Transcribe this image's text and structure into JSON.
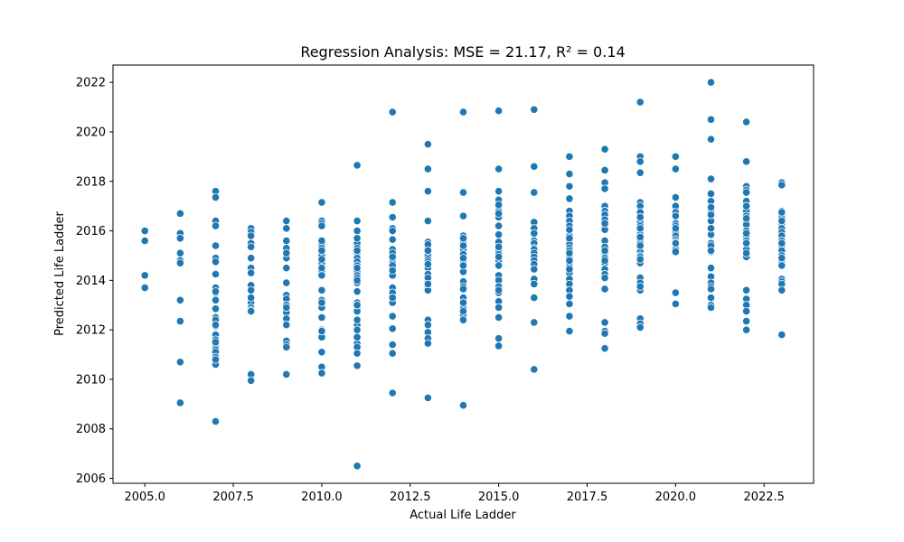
{
  "chart_data": {
    "type": "scatter",
    "title": "Regression Analysis: MSE = 21.17, R² = 0.14",
    "xlabel": "Actual Life Ladder",
    "ylabel": "Predicted Life Ladder",
    "xlim": [
      2004.1,
      2023.9
    ],
    "ylim": [
      2005.8,
      2022.7
    ],
    "xticks": [
      "2005.0",
      "2007.5",
      "2010.0",
      "2012.5",
      "2015.0",
      "2017.5",
      "2020.0",
      "2022.5"
    ],
    "yticks": [
      "2006",
      "2008",
      "2010",
      "2012",
      "2014",
      "2016",
      "2018",
      "2020",
      "2022"
    ],
    "grid": false,
    "legend": "none",
    "marker_color": "#1f77b4",
    "series": [
      {
        "x": [
          2005,
          2005,
          2005,
          2005,
          2005,
          2006,
          2006,
          2006,
          2006,
          2006,
          2006,
          2006,
          2006,
          2006,
          2006,
          2007,
          2007,
          2007,
          2007,
          2007,
          2007,
          2007,
          2007,
          2007,
          2007,
          2007,
          2007,
          2007,
          2007,
          2007,
          2007,
          2007,
          2007,
          2007,
          2007,
          2007,
          2007,
          2007,
          2007,
          2007,
          2007,
          2007,
          2007,
          2008,
          2008,
          2008,
          2008,
          2008,
          2008,
          2008,
          2008,
          2008,
          2008,
          2008,
          2008,
          2008,
          2008,
          2008,
          2008,
          2008,
          2008,
          2009,
          2009,
          2009,
          2009,
          2009,
          2009,
          2009,
          2009,
          2009,
          2009,
          2009,
          2009,
          2009,
          2009,
          2009,
          2009,
          2009,
          2009,
          2009,
          2009,
          2010,
          2010,
          2010,
          2010,
          2010,
          2010,
          2010,
          2010,
          2010,
          2010,
          2010,
          2010,
          2010,
          2010,
          2010,
          2010,
          2010,
          2010,
          2010,
          2010,
          2010,
          2010,
          2010,
          2010,
          2010,
          2010,
          2010,
          2010,
          2011,
          2011,
          2011,
          2011,
          2011,
          2011,
          2011,
          2011,
          2011,
          2011,
          2011,
          2011,
          2011,
          2011,
          2011,
          2011,
          2011,
          2011,
          2011,
          2011,
          2011,
          2011,
          2011,
          2011,
          2011,
          2011,
          2011,
          2011,
          2011,
          2011,
          2011,
          2011,
          2011,
          2012,
          2012,
          2012,
          2012,
          2012,
          2012,
          2012,
          2012,
          2012,
          2012,
          2012,
          2012,
          2012,
          2012,
          2012,
          2012,
          2012,
          2012,
          2012,
          2012,
          2012,
          2012,
          2012,
          2012,
          2012,
          2012,
          2013,
          2013,
          2013,
          2013,
          2013,
          2013,
          2013,
          2013,
          2013,
          2013,
          2013,
          2013,
          2013,
          2013,
          2013,
          2013,
          2013,
          2013,
          2013,
          2013,
          2013,
          2013,
          2013,
          2013,
          2013,
          2013,
          2013,
          2014,
          2014,
          2014,
          2014,
          2014,
          2014,
          2014,
          2014,
          2014,
          2014,
          2014,
          2014,
          2014,
          2014,
          2014,
          2014,
          2014,
          2014,
          2014,
          2014,
          2014,
          2014,
          2014,
          2014,
          2014,
          2014,
          2014,
          2015,
          2015,
          2015,
          2015,
          2015,
          2015,
          2015,
          2015,
          2015,
          2015,
          2015,
          2015,
          2015,
          2015,
          2015,
          2015,
          2015,
          2015,
          2015,
          2015,
          2015,
          2015,
          2015,
          2015,
          2015,
          2015,
          2015,
          2015,
          2015,
          2016,
          2016,
          2016,
          2016,
          2016,
          2016,
          2016,
          2016,
          2016,
          2016,
          2016,
          2016,
          2016,
          2016,
          2016,
          2016,
          2016,
          2016,
          2016,
          2016,
          2017,
          2017,
          2017,
          2017,
          2017,
          2017,
          2017,
          2017,
          2017,
          2017,
          2017,
          2017,
          2017,
          2017,
          2017,
          2017,
          2017,
          2017,
          2017,
          2017,
          2017,
          2017,
          2017,
          2017,
          2017,
          2017,
          2017,
          2017,
          2017,
          2017,
          2017,
          2018,
          2018,
          2018,
          2018,
          2018,
          2018,
          2018,
          2018,
          2018,
          2018,
          2018,
          2018,
          2018,
          2018,
          2018,
          2018,
          2018,
          2018,
          2018,
          2018,
          2018,
          2018,
          2018,
          2018,
          2018,
          2018,
          2019,
          2019,
          2019,
          2019,
          2019,
          2019,
          2019,
          2019,
          2019,
          2019,
          2019,
          2019,
          2019,
          2019,
          2019,
          2019,
          2019,
          2019,
          2019,
          2019,
          2019,
          2019,
          2019,
          2019,
          2019,
          2019,
          2019,
          2019,
          2019,
          2019,
          2019,
          2020,
          2020,
          2020,
          2020,
          2020,
          2020,
          2020,
          2020,
          2020,
          2020,
          2020,
          2020,
          2020,
          2020,
          2020,
          2020,
          2020,
          2020,
          2020,
          2020,
          2021,
          2021,
          2021,
          2021,
          2021,
          2021,
          2021,
          2021,
          2021,
          2021,
          2021,
          2021,
          2021,
          2021,
          2021,
          2021,
          2021,
          2021,
          2021,
          2021,
          2021,
          2021,
          2021,
          2021,
          2021,
          2021,
          2022,
          2022,
          2022,
          2022,
          2022,
          2022,
          2022,
          2022,
          2022,
          2022,
          2022,
          2022,
          2022,
          2022,
          2022,
          2022,
          2022,
          2022,
          2022,
          2022,
          2022,
          2022,
          2022,
          2022,
          2022,
          2022,
          2022,
          2022,
          2023,
          2023,
          2023,
          2023,
          2023,
          2023,
          2023,
          2023,
          2023,
          2023,
          2023,
          2023,
          2023,
          2023,
          2023,
          2023,
          2023,
          2023,
          2023,
          2023,
          2023,
          2023,
          2023,
          2023,
          2023
        ],
        "y": [
          2016.0,
          2015.6,
          2014.2,
          2013.7,
          2013.7,
          2016.7,
          2015.9,
          2015.7,
          2015.1,
          2014.8,
          2014.7,
          2013.2,
          2012.35,
          2010.7,
          2009.05,
          2017.6,
          2017.35,
          2016.4,
          2016.2,
          2015.4,
          2014.9,
          2014.75,
          2014.25,
          2013.7,
          2013.5,
          2013.2,
          2012.85,
          2012.5,
          2012.4,
          2012.15,
          2011.8,
          2011.6,
          2011.4,
          2011.3,
          2011.2,
          2011.1,
          2010.9,
          2010.6,
          2008.3,
          2013.55,
          2012.2,
          2011.5,
          2010.8,
          2016.1,
          2015.95,
          2015.8,
          2015.5,
          2015.35,
          2014.9,
          2014.5,
          2014.3,
          2013.8,
          2013.6,
          2013.25,
          2013.1,
          2012.9,
          2012.8,
          2012.75,
          2010.2,
          2009.95,
          2013.3,
          2016.4,
          2016.1,
          2015.6,
          2015.3,
          2015.0,
          2014.9,
          2014.5,
          2013.4,
          2013.25,
          2013.0,
          2012.7,
          2012.45,
          2012.2,
          2011.55,
          2011.4,
          2011.3,
          2010.2,
          2015.1,
          2013.9,
          2012.9,
          2017.15,
          2016.4,
          2016.3,
          2016.2,
          2015.45,
          2015.3,
          2015.1,
          2015.0,
          2014.8,
          2014.7,
          2014.35,
          2014.2,
          2013.6,
          2013.2,
          2013.0,
          2012.9,
          2012.5,
          2012.0,
          2011.7,
          2011.1,
          2010.5,
          2010.25,
          2015.2,
          2014.5,
          2013.1,
          2011.95,
          2015.6,
          2014.85,
          2018.65,
          2016.4,
          2016.0,
          2015.5,
          2015.3,
          2015.1,
          2014.9,
          2014.75,
          2014.6,
          2014.45,
          2014.35,
          2014.2,
          2013.9,
          2013.55,
          2013.1,
          2012.95,
          2012.85,
          2012.75,
          2012.2,
          2012.0,
          2011.45,
          2011.3,
          2011.05,
          2010.55,
          2006.5,
          2015.7,
          2015.2,
          2014.5,
          2014.1,
          2013.0,
          2012.4,
          2011.7,
          2014.0,
          2020.8,
          2017.15,
          2016.55,
          2016.1,
          2015.65,
          2015.25,
          2015.0,
          2014.85,
          2014.7,
          2014.5,
          2014.3,
          2014.2,
          2013.7,
          2013.5,
          2013.1,
          2012.55,
          2012.05,
          2011.4,
          2011.05,
          2009.45,
          2016.0,
          2015.1,
          2014.6,
          2013.3,
          2014.95,
          2014.4,
          2019.5,
          2018.5,
          2017.6,
          2016.4,
          2015.55,
          2015.4,
          2015.3,
          2015.15,
          2015.0,
          2014.85,
          2014.75,
          2014.5,
          2014.25,
          2013.95,
          2013.75,
          2013.6,
          2012.4,
          2012.2,
          2011.9,
          2011.65,
          2011.45,
          2009.25,
          2015.45,
          2015.2,
          2014.65,
          2014.1,
          2013.85,
          2020.8,
          2017.55,
          2016.6,
          2015.8,
          2015.6,
          2015.5,
          2015.25,
          2015.05,
          2014.85,
          2014.8,
          2014.35,
          2013.95,
          2013.75,
          2013.65,
          2013.3,
          2013.0,
          2012.85,
          2012.7,
          2012.6,
          2012.4,
          2008.95,
          2015.7,
          2015.4,
          2014.9,
          2014.6,
          2013.1,
          2012.75,
          2020.85,
          2018.5,
          2017.6,
          2017.25,
          2017.0,
          2016.8,
          2016.55,
          2016.2,
          2015.85,
          2015.55,
          2015.2,
          2015.05,
          2014.9,
          2014.8,
          2014.2,
          2014.0,
          2013.75,
          2013.5,
          2013.15,
          2012.5,
          2011.65,
          2011.35,
          2017.05,
          2016.7,
          2015.35,
          2014.95,
          2014.6,
          2013.6,
          2012.9,
          2020.9,
          2018.6,
          2017.55,
          2016.35,
          2016.1,
          2015.9,
          2015.6,
          2015.5,
          2015.3,
          2015.25,
          2015.1,
          2014.95,
          2014.8,
          2014.65,
          2014.45,
          2014.05,
          2013.85,
          2013.3,
          2012.3,
          2010.4,
          2019.0,
          2018.3,
          2017.8,
          2017.3,
          2016.8,
          2016.6,
          2016.4,
          2016.2,
          2016.0,
          2015.8,
          2015.6,
          2015.45,
          2015.3,
          2015.2,
          2015.0,
          2014.9,
          2014.7,
          2014.55,
          2014.3,
          2014.05,
          2013.85,
          2013.6,
          2013.05,
          2012.55,
          2011.95,
          2016.05,
          2015.7,
          2015.1,
          2014.8,
          2014.45,
          2013.35,
          2019.3,
          2018.45,
          2017.95,
          2017.7,
          2017.0,
          2016.8,
          2016.65,
          2016.45,
          2016.2,
          2016.05,
          2015.6,
          2015.35,
          2015.1,
          2014.9,
          2014.7,
          2014.45,
          2014.25,
          2014.1,
          2013.65,
          2012.3,
          2011.95,
          2011.85,
          2011.25,
          2016.3,
          2015.2,
          2014.8,
          2021.2,
          2019.0,
          2018.8,
          2018.35,
          2017.15,
          2017.0,
          2016.75,
          2016.35,
          2016.2,
          2016.0,
          2015.85,
          2015.65,
          2015.5,
          2015.3,
          2015.15,
          2015.0,
          2014.95,
          2014.7,
          2014.1,
          2013.9,
          2013.7,
          2013.6,
          2012.45,
          2012.25,
          2012.1,
          2016.55,
          2016.1,
          2015.75,
          2015.4,
          2014.85,
          2013.75,
          2019.0,
          2018.5,
          2017.35,
          2017.0,
          2016.75,
          2016.3,
          2016.2,
          2015.95,
          2015.8,
          2015.65,
          2015.55,
          2015.4,
          2015.3,
          2015.25,
          2013.5,
          2013.05,
          2016.6,
          2016.1,
          2015.5,
          2015.15,
          2022.0,
          2020.5,
          2019.7,
          2018.1,
          2017.5,
          2017.2,
          2016.85,
          2016.75,
          2016.4,
          2015.85,
          2015.5,
          2015.35,
          2015.15,
          2014.5,
          2014.15,
          2013.9,
          2013.75,
          2013.0,
          2012.9,
          2016.95,
          2016.65,
          2016.1,
          2015.4,
          2015.2,
          2013.65,
          2013.3,
          2020.4,
          2018.8,
          2017.8,
          2017.65,
          2017.55,
          2017.2,
          2016.9,
          2016.8,
          2016.6,
          2016.4,
          2016.25,
          2016.0,
          2015.8,
          2015.6,
          2015.25,
          2015.05,
          2014.95,
          2013.6,
          2013.25,
          2013.0,
          2012.75,
          2012.35,
          2012.0,
          2017.0,
          2016.5,
          2015.9,
          2015.5,
          2015.1,
          2017.95,
          2017.85,
          2016.8,
          2016.65,
          2016.5,
          2016.3,
          2016.1,
          2015.95,
          2015.8,
          2015.6,
          2015.4,
          2015.2,
          2015.0,
          2014.8,
          2014.7,
          2014.05,
          2013.95,
          2013.85,
          2013.6,
          2011.8,
          2016.75,
          2016.4,
          2015.5,
          2014.9,
          2014.6
        ]
      }
    ]
  }
}
